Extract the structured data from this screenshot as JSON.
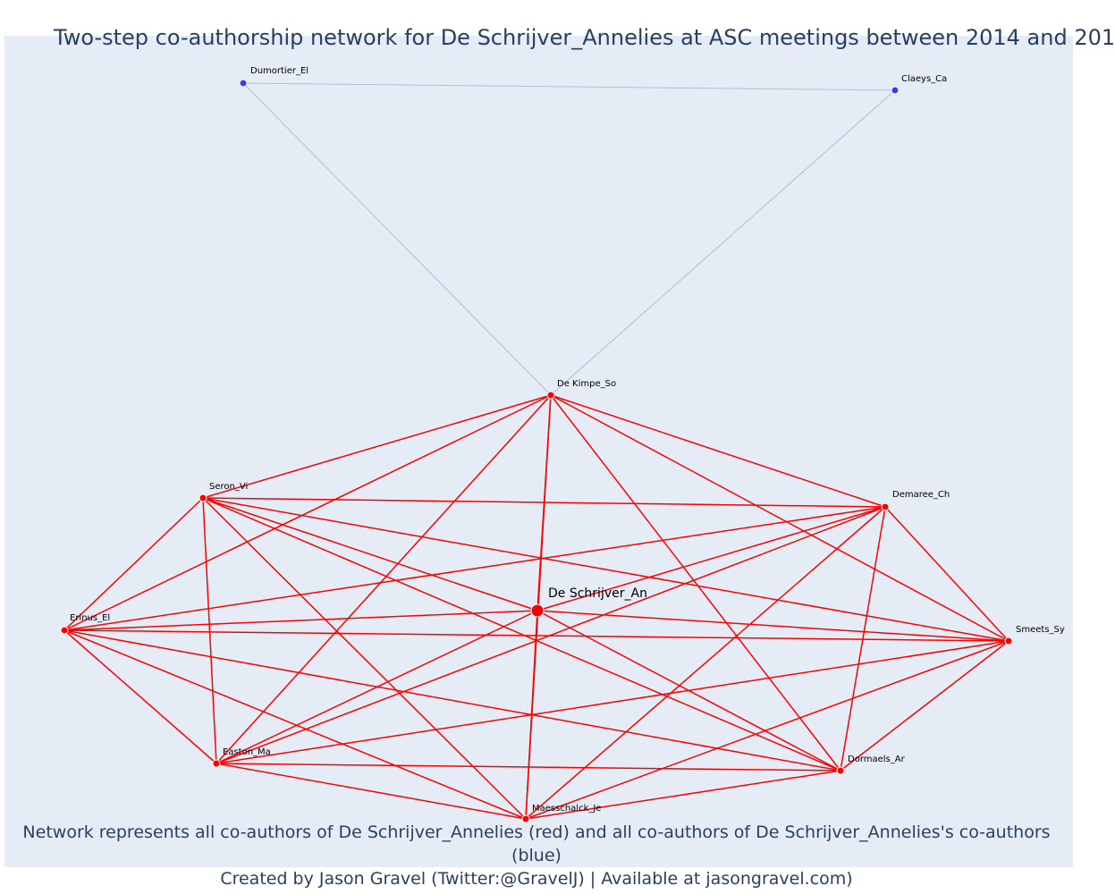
{
  "title": "Two-step co-authorship network for De Schrijver_Annelies at ASC meetings between 2014 and 201",
  "footer": {
    "line1": "Network represents all co-authors of De Schrijver_Annelies (red) and all co-authors of De Schrijver_Annelies's co-authors (blue)",
    "line2": "Created by Jason Gravel (Twitter:@GravelJ) | Available at jasongravel.com)"
  },
  "colors": {
    "background": "#e5ecf6",
    "first_degree": "#ff0000",
    "second_degree": "#3b3bf5",
    "second_degree_edge": "#b8bccc",
    "text": "#2a3f5f"
  },
  "nodes": [
    {
      "id": "center",
      "label": "De Schrijver_An",
      "group": "center"
    },
    {
      "id": "dekimpe",
      "label": "De Kimpe_So",
      "group": "coauthor"
    },
    {
      "id": "seron",
      "label": "Seron_Vi",
      "group": "coauthor"
    },
    {
      "id": "demaree",
      "label": "Demaree_Ch",
      "group": "coauthor"
    },
    {
      "id": "erinus",
      "label": "Erinus_El",
      "group": "coauthor"
    },
    {
      "id": "smeets",
      "label": "Smeets_Sy",
      "group": "coauthor"
    },
    {
      "id": "easton",
      "label": "Easton_Ma",
      "group": "coauthor"
    },
    {
      "id": "dormaels",
      "label": "Dormaels_Ar",
      "group": "coauthor"
    },
    {
      "id": "maesschalck",
      "label": "Maesschalck_Je",
      "group": "coauthor"
    },
    {
      "id": "dumortier",
      "label": "Dumortier_El",
      "group": "second"
    },
    {
      "id": "claeys",
      "label": "Claeys_Ca",
      "group": "second"
    }
  ],
  "edges": [
    [
      "dumortier",
      "claeys"
    ],
    [
      "dumortier",
      "dekimpe"
    ],
    [
      "claeys",
      "dekimpe"
    ],
    [
      "center",
      "dekimpe"
    ],
    [
      "center",
      "seron"
    ],
    [
      "center",
      "demaree"
    ],
    [
      "center",
      "erinus"
    ],
    [
      "center",
      "smeets"
    ],
    [
      "center",
      "easton"
    ],
    [
      "center",
      "dormaels"
    ],
    [
      "center",
      "maesschalck"
    ],
    [
      "dekimpe",
      "seron"
    ],
    [
      "dekimpe",
      "demaree"
    ],
    [
      "dekimpe",
      "erinus"
    ],
    [
      "dekimpe",
      "smeets"
    ],
    [
      "dekimpe",
      "easton"
    ],
    [
      "dekimpe",
      "dormaels"
    ],
    [
      "dekimpe",
      "maesschalck"
    ],
    [
      "seron",
      "demaree"
    ],
    [
      "seron",
      "erinus"
    ],
    [
      "seron",
      "smeets"
    ],
    [
      "seron",
      "easton"
    ],
    [
      "seron",
      "dormaels"
    ],
    [
      "seron",
      "maesschalck"
    ],
    [
      "demaree",
      "erinus"
    ],
    [
      "demaree",
      "smeets"
    ],
    [
      "demaree",
      "easton"
    ],
    [
      "demaree",
      "dormaels"
    ],
    [
      "demaree",
      "maesschalck"
    ],
    [
      "erinus",
      "smeets"
    ],
    [
      "erinus",
      "easton"
    ],
    [
      "erinus",
      "dormaels"
    ],
    [
      "erinus",
      "maesschalck"
    ],
    [
      "smeets",
      "easton"
    ],
    [
      "smeets",
      "dormaels"
    ],
    [
      "smeets",
      "maesschalck"
    ],
    [
      "easton",
      "dormaels"
    ],
    [
      "easton",
      "maesschalck"
    ],
    [
      "dormaels",
      "maesschalck"
    ]
  ]
}
